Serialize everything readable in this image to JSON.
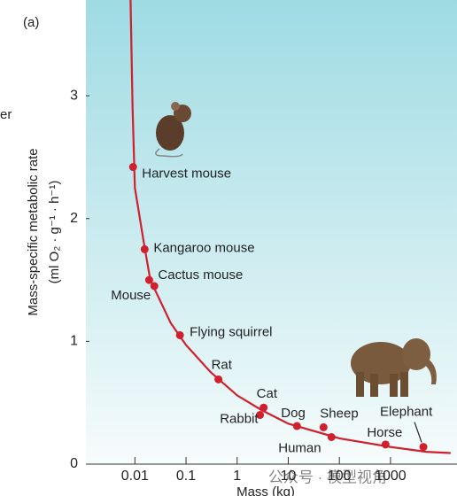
{
  "panel_label": "(a)",
  "side_fragment": "er",
  "watermark": "公众号 · 模型视角",
  "chart_data": {
    "type": "scatter",
    "xlabel": "Mass (kg)",
    "ylabel": "Mass-specific metabolic rate",
    "ylabel_units": "(ml O₂ · g⁻¹ · h⁻¹)",
    "xscale": "log",
    "xlim": [
      0.0011,
      20000
    ],
    "ylim": [
      0,
      3.78
    ],
    "xticks": [
      0.01,
      0.1,
      1,
      10,
      100,
      1000
    ],
    "yticks": [
      0,
      1,
      2,
      3
    ],
    "color": "#d0202e",
    "labels": [
      "Harvest mouse",
      "Kangaroo mouse",
      "Cactus mouse",
      "Mouse",
      "Flying squirrel",
      "Rat",
      "Cat",
      "Rabbit",
      "Dog",
      "Sheep",
      "Human",
      "Horse",
      "Elephant"
    ],
    "x": [
      0.0092,
      0.0155,
      0.019,
      0.024,
      0.076,
      0.43,
      3.3,
      2.8,
      14.8,
      49,
      70,
      800,
      4400
    ],
    "values": [
      2.42,
      1.75,
      1.5,
      1.45,
      1.05,
      0.69,
      0.46,
      0.4,
      0.31,
      0.3,
      0.22,
      0.16,
      0.14
    ],
    "curve": {
      "x": [
        0.0082,
        0.009,
        0.01,
        0.015,
        0.02,
        0.05,
        0.1,
        0.3,
        1,
        3,
        10,
        100,
        1000,
        5000,
        15000
      ],
      "values": [
        3.78,
        2.9,
        2.25,
        1.8,
        1.5,
        1.15,
        0.97,
        0.75,
        0.56,
        0.44,
        0.33,
        0.21,
        0.14,
        0.1,
        0.09
      ]
    }
  }
}
